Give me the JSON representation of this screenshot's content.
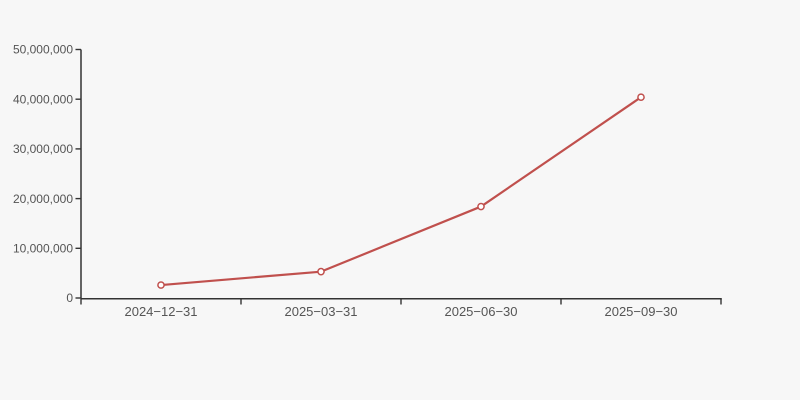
{
  "background_color": "#f7f7f7",
  "chart_data": {
    "type": "line",
    "title": "",
    "xlabel": "",
    "ylabel": "",
    "categories": [
      "2024−12−31",
      "2025−03−31",
      "2025−06−30",
      "2025−09−30"
    ],
    "series": [
      {
        "name": "value",
        "values": [
          2600000,
          5300000,
          18400000,
          40400000
        ]
      }
    ],
    "ylim": [
      0,
      50000000
    ],
    "y_tick_values": [
      0,
      10000000,
      20000000,
      30000000,
      40000000,
      50000000
    ],
    "y_tick_labels": [
      "0",
      "10,000,000",
      "20,000,000",
      "30,000,000",
      "40,000,000",
      "50,000,000"
    ],
    "grid": false,
    "legend": false,
    "marker": "open-circle",
    "colors": {
      "line": "#c0504d",
      "marker_fill": "#ffffff",
      "axis": "#333333",
      "tick_label": "#555555",
      "background": "#f7f7f7"
    }
  }
}
